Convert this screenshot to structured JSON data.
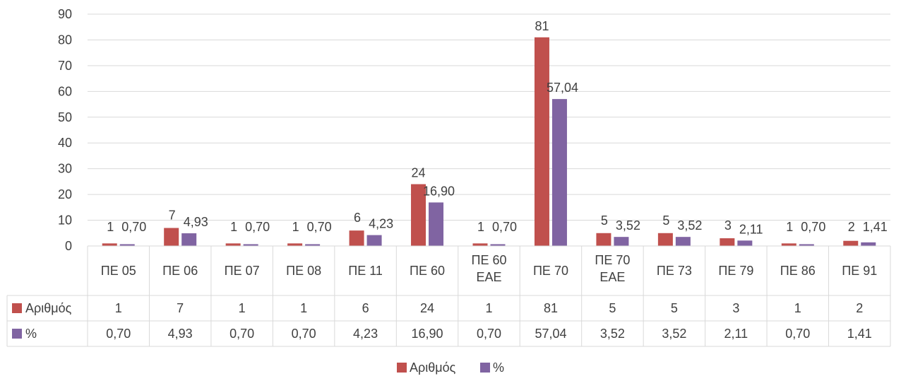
{
  "chart_data": {
    "type": "bar",
    "categories": [
      "ΠΕ 05",
      "ΠΕ 06",
      "ΠΕ 07",
      "ΠΕ 08",
      "ΠΕ 11",
      "ΠΕ 60",
      "ΠΕ 60 ΕΑΕ",
      "ΠΕ 70",
      "ΠΕ 70 ΕΑΕ",
      "ΠΕ 73",
      "ΠΕ 79",
      "ΠΕ 86",
      "ΠΕ 91"
    ],
    "series": [
      {
        "name": "Αριθμός",
        "color": "#C0504D",
        "values": [
          1,
          7,
          1,
          1,
          6,
          24,
          1,
          81,
          5,
          5,
          3,
          1,
          2
        ],
        "labels": [
          "1",
          "7",
          "1",
          "1",
          "6",
          "24",
          "1",
          "81",
          "5",
          "5",
          "3",
          "1",
          "2"
        ]
      },
      {
        "name": "%",
        "color": "#8064A2",
        "values": [
          0.7,
          4.93,
          0.7,
          0.7,
          4.23,
          16.9,
          0.7,
          57.04,
          3.52,
          3.52,
          2.11,
          0.7,
          1.41
        ],
        "labels": [
          "0,70",
          "4,93",
          "0,70",
          "0,70",
          "4,23",
          "16,90",
          "0,70",
          "57,04",
          "3,52",
          "3,52",
          "2,11",
          "0,70",
          "1,41"
        ]
      }
    ],
    "yticks": [
      "0",
      "10",
      "20",
      "30",
      "40",
      "50",
      "60",
      "70",
      "80",
      "90"
    ],
    "ylim": [
      0,
      90
    ],
    "grid": true,
    "data_table": true,
    "legend": "bottom"
  }
}
